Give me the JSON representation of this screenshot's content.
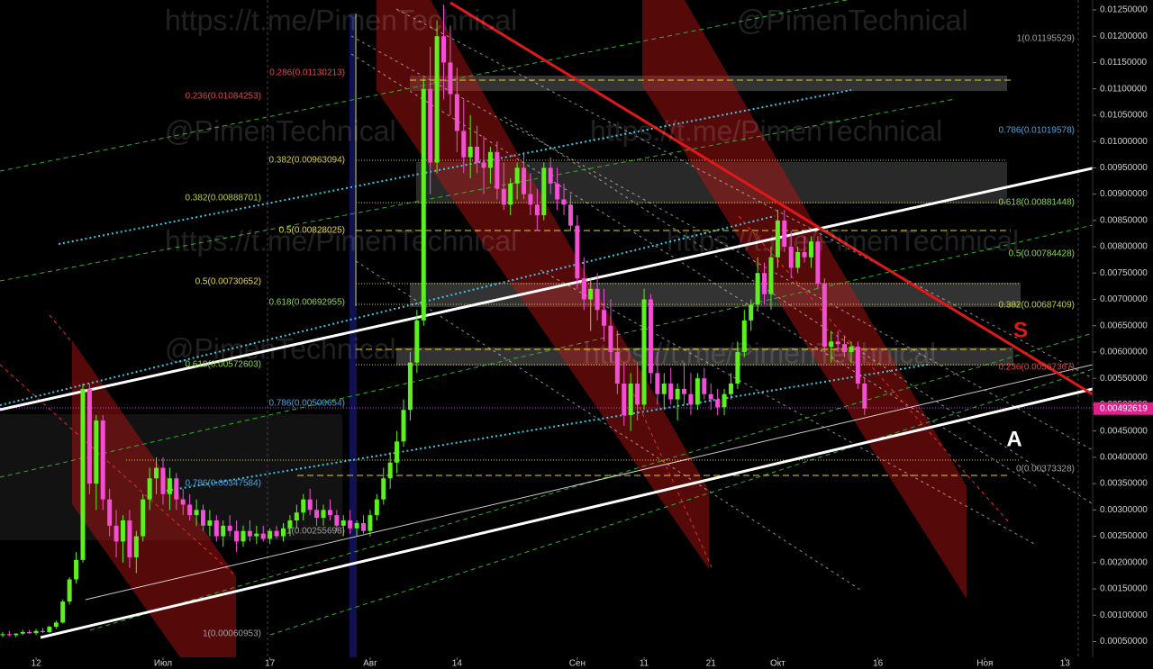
{
  "chart_data": {
    "type": "candlestick",
    "up_color": "#5cf01e",
    "down_color": "#f24fd4",
    "xlim": [
      -5.4,
      158
    ],
    "ylim": [
      0.0002,
      0.012688
    ],
    "xticks": [
      {
        "value": 0,
        "label": "12"
      },
      {
        "value": 19,
        "label": "Июл"
      },
      {
        "value": 35,
        "label": "17"
      },
      {
        "value": 50,
        "label": "Авг"
      },
      {
        "value": 63,
        "label": "14"
      },
      {
        "value": 81,
        "label": "Сен"
      },
      {
        "value": 91,
        "label": "11"
      },
      {
        "value": 101,
        "label": "21"
      },
      {
        "value": 111,
        "label": "Окт"
      },
      {
        "value": 126,
        "label": "16"
      },
      {
        "value": 142,
        "label": "Ноя"
      },
      {
        "value": 154,
        "label": "13"
      }
    ],
    "yticks": [
      {
        "value": 0.0005,
        "label": "0.00050000"
      },
      {
        "value": 0.001,
        "label": "0.00100000"
      },
      {
        "value": 0.0015,
        "label": "0.00150000"
      },
      {
        "value": 0.002,
        "label": "0.00200000"
      },
      {
        "value": 0.0025,
        "label": "0.00250000"
      },
      {
        "value": 0.003,
        "label": "0.00300000"
      },
      {
        "value": 0.0035,
        "label": "0.00350000"
      },
      {
        "value": 0.004,
        "label": "0.00400000"
      },
      {
        "value": 0.0045,
        "label": "0.00450000"
      },
      {
        "value": 0.005,
        "label": "0.00500000"
      },
      {
        "value": 0.0055,
        "label": "0.00550000"
      },
      {
        "value": 0.006,
        "label": "0.00600000"
      },
      {
        "value": 0.0065,
        "label": "0.00650000"
      },
      {
        "value": 0.007,
        "label": "0.00700000"
      },
      {
        "value": 0.0075,
        "label": "0.00750000"
      },
      {
        "value": 0.008,
        "label": "0.00800000"
      },
      {
        "value": 0.0085,
        "label": "0.00850000"
      },
      {
        "value": 0.009,
        "label": "0.00900000"
      },
      {
        "value": 0.0095,
        "label": "0.00950000"
      },
      {
        "value": 0.01,
        "label": "0.01000000"
      },
      {
        "value": 0.0105,
        "label": "0.01050000"
      },
      {
        "value": 0.011,
        "label": "0.01100000"
      },
      {
        "value": 0.0115,
        "label": "0.01150000"
      },
      {
        "value": 0.012,
        "label": "0.01200000"
      },
      {
        "value": 0.0125,
        "label": "0.01250000"
      }
    ],
    "last_price": {
      "value": 0.00492619,
      "label": "0.00492619"
    },
    "x": [
      -5,
      -4,
      -3,
      -2,
      -1,
      0,
      1,
      2,
      3,
      4,
      5,
      6,
      7,
      8,
      9,
      10,
      11,
      12,
      13,
      14,
      15,
      16,
      17,
      18,
      19,
      20,
      21,
      22,
      23,
      24,
      25,
      26,
      27,
      28,
      29,
      30,
      31,
      32,
      33,
      34,
      35,
      36,
      37,
      38,
      39,
      40,
      41,
      42,
      43,
      44,
      45,
      46,
      47,
      48,
      49,
      50,
      51,
      52,
      53,
      54,
      55,
      56,
      57,
      58,
      59,
      60,
      61,
      62,
      63,
      64,
      65,
      66,
      67,
      68,
      69,
      70,
      71,
      72,
      73,
      74,
      75,
      76,
      77,
      78,
      79,
      80,
      81,
      82,
      83,
      84,
      85,
      86,
      87,
      88,
      89,
      90,
      91,
      92,
      93,
      94,
      95,
      96,
      97,
      98,
      99,
      100,
      101,
      102,
      103,
      104,
      105,
      106,
      107,
      108,
      109,
      110,
      111,
      112,
      113,
      114,
      115,
      116,
      117,
      118,
      119,
      120,
      121,
      122,
      123,
      124
    ],
    "open": [
      0.00062,
      0.00064,
      0.00062,
      0.00065,
      0.00068,
      0.00066,
      0.0007,
      0.00068,
      0.00078,
      0.00086,
      0.00126,
      0.00168,
      0.00205,
      0.0053,
      0.0035,
      0.0047,
      0.0032,
      0.0027,
      0.0024,
      0.0028,
      0.0021,
      0.0025,
      0.0032,
      0.0036,
      0.0038,
      0.0033,
      0.0036,
      0.0032,
      0.0031,
      0.0029,
      0.003,
      0.0027,
      0.0028,
      0.0025,
      0.0027,
      0.0026,
      0.0024,
      0.0026,
      0.0025,
      0.00255,
      0.00245,
      0.0026,
      0.0025,
      0.00265,
      0.0028,
      0.00295,
      0.0032,
      0.003,
      0.00285,
      0.003,
      0.0029,
      0.0027,
      0.0028,
      0.00265,
      0.00275,
      0.0026,
      0.0029,
      0.0032,
      0.0036,
      0.0039,
      0.0043,
      0.0049,
      0.0058,
      0.0066,
      0.011,
      0.0096,
      0.012,
      0.0115,
      0.0109,
      0.0102,
      0.0097,
      0.0099,
      0.0096,
      0.0095,
      0.0098,
      0.0091,
      0.0088,
      0.0092,
      0.0095,
      0.009,
      0.0088,
      0.0086,
      0.0095,
      0.0092,
      0.0089,
      0.0088,
      0.0084,
      0.0074,
      0.007,
      0.0072,
      0.0068,
      0.0065,
      0.006,
      0.0054,
      0.0048,
      0.0054,
      0.005,
      0.007,
      0.0056,
      0.0052,
      0.0054,
      0.0051,
      0.0053,
      0.0052,
      0.005,
      0.0055,
      0.0052,
      0.0051,
      0.00495,
      0.0052,
      0.0054,
      0.006,
      0.0066,
      0.0069,
      0.0075,
      0.0071,
      0.0078,
      0.0085,
      0.008,
      0.0076,
      0.0079,
      0.0078,
      0.0081,
      0.0073,
      0.0061,
      0.0062,
      0.00615,
      0.006,
      0.0061,
      0.0054
    ],
    "high": [
      0.00068,
      0.0007,
      0.00066,
      0.00072,
      0.00072,
      0.00074,
      0.00076,
      0.0008,
      0.0009,
      0.0013,
      0.00172,
      0.0022,
      0.0054,
      0.0054,
      0.0048,
      0.0048,
      0.0034,
      0.003,
      0.0029,
      0.003,
      0.0026,
      0.0033,
      0.0038,
      0.004,
      0.004,
      0.0038,
      0.0037,
      0.0034,
      0.0033,
      0.0032,
      0.0031,
      0.003,
      0.0029,
      0.0028,
      0.0029,
      0.0028,
      0.0027,
      0.0028,
      0.0027,
      0.0027,
      0.00265,
      0.0027,
      0.00275,
      0.0029,
      0.0031,
      0.0033,
      0.0034,
      0.0032,
      0.0031,
      0.0032,
      0.003,
      0.0029,
      0.003,
      0.0028,
      0.0029,
      0.003,
      0.0033,
      0.0038,
      0.0041,
      0.0045,
      0.0051,
      0.006,
      0.0068,
      0.0112,
      0.0118,
      0.0123,
      0.0126,
      0.0122,
      0.0114,
      0.0108,
      0.0105,
      0.0103,
      0.0101,
      0.0099,
      0.01,
      0.0096,
      0.0093,
      0.0096,
      0.0098,
      0.0094,
      0.0091,
      0.0096,
      0.0097,
      0.0095,
      0.0092,
      0.009,
      0.0086,
      0.0078,
      0.0074,
      0.0075,
      0.0072,
      0.007,
      0.0064,
      0.0058,
      0.0056,
      0.0058,
      0.0072,
      0.0071,
      0.006,
      0.0056,
      0.0057,
      0.0054,
      0.0058,
      0.0056,
      0.0056,
      0.0057,
      0.0054,
      0.0053,
      0.0053,
      0.0056,
      0.0062,
      0.0068,
      0.007,
      0.0078,
      0.0077,
      0.008,
      0.0087,
      0.0087,
      0.0083,
      0.008,
      0.0082,
      0.0082,
      0.0082,
      0.0074,
      0.0064,
      0.0064,
      0.0063,
      0.0062,
      0.0062,
      0.0055
    ],
    "low": [
      0.00058,
      0.0006,
      0.00058,
      0.00062,
      0.00064,
      0.00062,
      0.00066,
      0.00066,
      0.00074,
      0.00084,
      0.0012,
      0.0016,
      0.002,
      0.0033,
      0.003,
      0.003,
      0.0025,
      0.0021,
      0.002,
      0.0019,
      0.0018,
      0.0024,
      0.003,
      0.0033,
      0.0031,
      0.003,
      0.003,
      0.0029,
      0.0028,
      0.0027,
      0.0026,
      0.0025,
      0.0024,
      0.0023,
      0.0025,
      0.0022,
      0.0023,
      0.0024,
      0.00235,
      0.0024,
      0.00235,
      0.00245,
      0.0024,
      0.0025,
      0.00265,
      0.0028,
      0.0029,
      0.0027,
      0.0027,
      0.0028,
      0.0026,
      0.0025,
      0.00255,
      0.0025,
      0.00255,
      0.0025,
      0.0028,
      0.0031,
      0.0034,
      0.0037,
      0.0042,
      0.0047,
      0.0056,
      0.0065,
      0.009,
      0.0094,
      0.0108,
      0.0105,
      0.0098,
      0.0094,
      0.0093,
      0.0094,
      0.009,
      0.0092,
      0.0089,
      0.0087,
      0.0086,
      0.0089,
      0.0089,
      0.0086,
      0.0083,
      0.0085,
      0.009,
      0.0087,
      0.0086,
      0.0083,
      0.0072,
      0.0068,
      0.0064,
      0.0066,
      0.0062,
      0.0058,
      0.0052,
      0.0046,
      0.0045,
      0.0047,
      0.0049,
      0.0054,
      0.005,
      0.0049,
      0.005,
      0.0047,
      0.005,
      0.0048,
      0.0049,
      0.0051,
      0.0049,
      0.0048,
      0.0048,
      0.0051,
      0.0053,
      0.0059,
      0.0064,
      0.0068,
      0.0069,
      0.0068,
      0.0076,
      0.0079,
      0.0074,
      0.0075,
      0.0077,
      0.0076,
      0.0072,
      0.006,
      0.0058,
      0.006,
      0.0059,
      0.0058,
      0.0053,
      0.0048
    ],
    "close": [
      0.00064,
      0.00062,
      0.00065,
      0.00068,
      0.00066,
      0.0007,
      0.00068,
      0.00078,
      0.00086,
      0.00126,
      0.00168,
      0.00205,
      0.0053,
      0.0035,
      0.0047,
      0.0032,
      0.0027,
      0.0024,
      0.0028,
      0.0021,
      0.0025,
      0.0032,
      0.0036,
      0.0038,
      0.0033,
      0.0036,
      0.0032,
      0.0031,
      0.0029,
      0.003,
      0.0027,
      0.0028,
      0.0025,
      0.0027,
      0.0026,
      0.0024,
      0.0026,
      0.0025,
      0.00255,
      0.00245,
      0.0026,
      0.0025,
      0.00265,
      0.0028,
      0.00295,
      0.0032,
      0.003,
      0.00285,
      0.003,
      0.0029,
      0.0027,
      0.0028,
      0.00265,
      0.00275,
      0.0026,
      0.0029,
      0.0032,
      0.0036,
      0.0039,
      0.0043,
      0.0049,
      0.0058,
      0.0066,
      0.011,
      0.0096,
      0.012,
      0.0115,
      0.0109,
      0.0102,
      0.0097,
      0.0099,
      0.0096,
      0.0095,
      0.0098,
      0.0091,
      0.0088,
      0.0092,
      0.0095,
      0.009,
      0.0088,
      0.0086,
      0.0095,
      0.0092,
      0.0089,
      0.0088,
      0.0084,
      0.0074,
      0.007,
      0.0072,
      0.0068,
      0.0065,
      0.006,
      0.0054,
      0.0048,
      0.0054,
      0.005,
      0.007,
      0.0056,
      0.0052,
      0.0054,
      0.0051,
      0.0053,
      0.0052,
      0.005,
      0.0055,
      0.0052,
      0.0051,
      0.00495,
      0.0052,
      0.0054,
      0.006,
      0.0066,
      0.0069,
      0.0075,
      0.0071,
      0.0078,
      0.0085,
      0.008,
      0.0076,
      0.0079,
      0.0078,
      0.0081,
      0.0073,
      0.0061,
      0.0062,
      0.00615,
      0.006,
      0.0061,
      0.0054,
      0.00492619
    ],
    "fib_labels": [
      {
        "text": "1(0.01195529)",
        "color": "#a0a0a0"
      },
      {
        "text": "0.786(0.01019578)",
        "color": "#4aa3e0"
      },
      {
        "text": "0.618(0.00881448)",
        "color": "#8ed650"
      },
      {
        "text": "0.5(0.00784428)",
        "color": "#8ed650"
      },
      {
        "text": "0.382(0.00687409)",
        "color": "#c8d040"
      },
      {
        "text": "0.236(0.00567367)",
        "color": "#e04848"
      },
      {
        "text": "0(0.00373328)",
        "color": "#a0a0a0"
      },
      {
        "text": "0.286(0.01130213)",
        "color": "#e04848"
      },
      {
        "text": "0.236(0.01084253)",
        "color": "#e04848"
      },
      {
        "text": "0.382(0.00963094)",
        "color": "#d8d040"
      },
      {
        "text": "0.382(0.00888701)",
        "color": "#b8d040"
      },
      {
        "text": "0.5(0.00828025)",
        "color": "#e8d840"
      },
      {
        "text": "0.5(0.00730652)",
        "color": "#e8d840"
      },
      {
        "text": "0.618(0.00692955)",
        "color": "#8ed650"
      },
      {
        "text": "0.618(0.00572603)",
        "color": "#8ed650"
      },
      {
        "text": "0.786(0.00500654)",
        "color": "#4aa3e0"
      },
      {
        "text": "0.786(0.00347584)",
        "color": "#4aa3e0"
      },
      {
        "text": "1(0.00255698)",
        "color": "#a0a0a0"
      },
      {
        "text": "1(0.00060953)",
        "color": "#a0a0a0"
      }
    ],
    "watermarks": [
      "https://t.me/PimenTechnical",
      "@PimenTechnical"
    ],
    "channel_labels": [
      "S",
      "A"
    ]
  }
}
